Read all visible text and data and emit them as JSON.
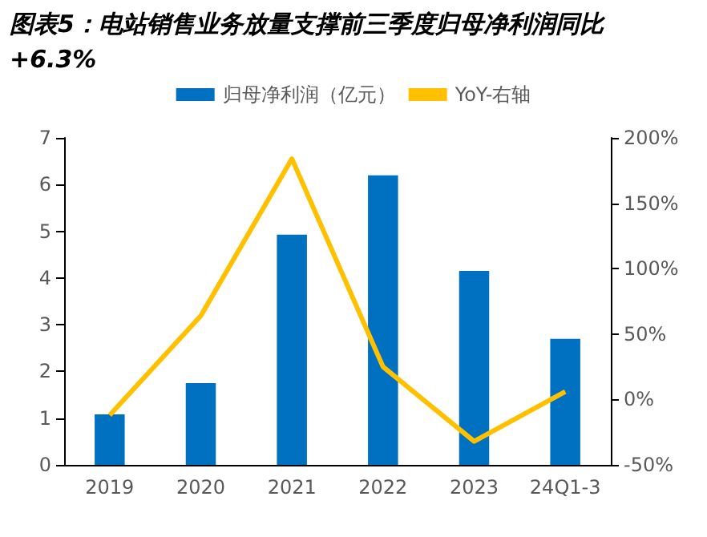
{
  "chart_data": {
    "type": "bar",
    "title": "图表5：电站销售业务放量支撑前三季度归母净利润同比+6.3%",
    "categories": [
      "2019",
      "2020",
      "2021",
      "2022",
      "2023",
      "24Q1-3"
    ],
    "series": [
      {
        "name": "归母净利润（亿元）",
        "color": "#0070c0",
        "values": [
          1.08,
          1.75,
          4.93,
          6.2,
          4.15,
          2.7
        ]
      },
      {
        "name": "YoY-右轴",
        "type": "line",
        "axis": "y2",
        "color": "#ffc000",
        "values": [
          -12,
          64,
          184,
          25,
          -32,
          6
        ]
      }
    ],
    "ylim": [
      0,
      7
    ],
    "yticks": [
      0,
      1,
      2,
      3,
      4,
      5,
      6,
      7
    ],
    "y2lim": [
      -50,
      200
    ],
    "y2ticks": [
      {
        "value": -50,
        "label": "-50%"
      },
      {
        "value": 0,
        "label": "0%"
      },
      {
        "value": 50,
        "label": "50%"
      },
      {
        "value": 100,
        "label": "100%"
      },
      {
        "value": 150,
        "label": "150%"
      },
      {
        "value": 200,
        "label": "200%"
      }
    ],
    "legend": "top",
    "grid": false,
    "marker": "none"
  }
}
